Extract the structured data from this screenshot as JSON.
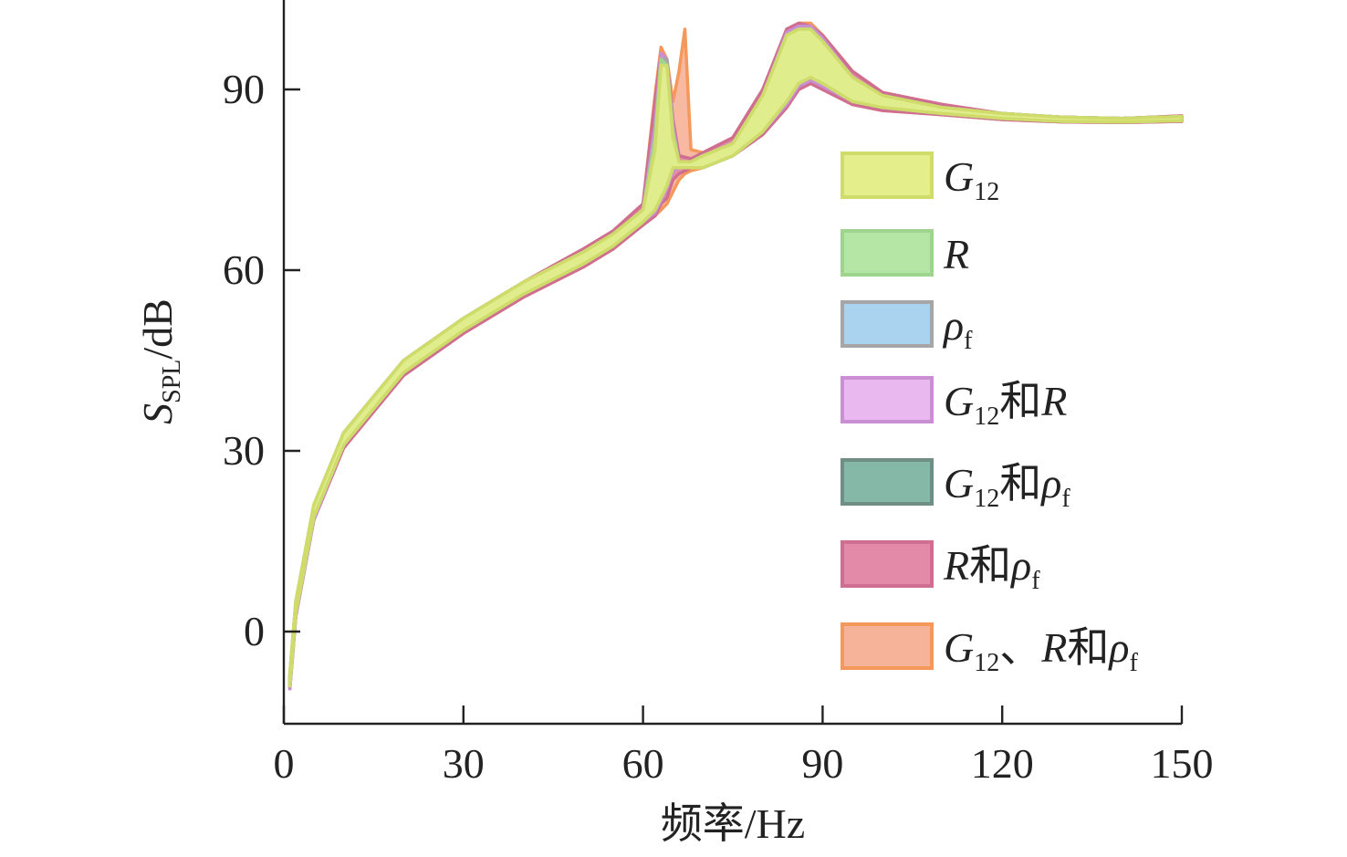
{
  "chart_data": {
    "type": "area",
    "title": "",
    "xlabel": "频率/Hz",
    "ylabel": {
      "main": "S",
      "sub": "SPL",
      "unit": "/dB"
    },
    "xlim": [
      0,
      150
    ],
    "ylim": [
      -15,
      105
    ],
    "xticks": [
      0,
      30,
      60,
      90,
      120,
      150
    ],
    "yticks": [
      0,
      30,
      60,
      90
    ],
    "grid": false,
    "legend_position": "right",
    "series": [
      {
        "name": "G12",
        "label_parts": [
          {
            "t": "G",
            "i": true
          },
          {
            "t": "12",
            "s": true
          }
        ],
        "color": "#e4ee8a",
        "edge": "#cfdc6a",
        "x": [
          1,
          2,
          5,
          10,
          20,
          30,
          40,
          50,
          55,
          60,
          62,
          63,
          64,
          65,
          66,
          68,
          70,
          75,
          80,
          84,
          86,
          88,
          90,
          95,
          100,
          110,
          120,
          130,
          140,
          150
        ],
        "upper": [
          -7,
          5,
          21,
          33,
          45,
          52,
          58,
          63,
          66,
          70,
          80,
          94,
          94,
          82,
          78,
          78,
          79,
          81,
          89,
          99,
          100,
          100,
          98,
          92,
          89,
          87,
          86,
          85.4,
          85.2,
          85.5
        ],
        "lower": [
          -9,
          3,
          19,
          31,
          43,
          50,
          56,
          61,
          64,
          68,
          70,
          72,
          74,
          77,
          77,
          77,
          77,
          79,
          83,
          88,
          91,
          92,
          91,
          88,
          87,
          86,
          85.2,
          84.7,
          84.6,
          84.8
        ]
      },
      {
        "name": "R",
        "label_parts": [
          {
            "t": "R",
            "i": true
          }
        ],
        "color": "#b6e6a6",
        "edge": "#9fd48e",
        "x": [
          1,
          2,
          5,
          10,
          20,
          30,
          40,
          50,
          55,
          60,
          62,
          63,
          64,
          65,
          66,
          68,
          70,
          75,
          80,
          84,
          86,
          88,
          90,
          95,
          100,
          110,
          120,
          130,
          140,
          150
        ],
        "upper": [
          -7,
          5,
          21,
          33,
          45,
          52,
          58,
          63,
          66,
          70,
          82,
          95,
          94,
          83,
          78,
          78,
          79,
          81,
          89,
          99,
          100,
          100,
          98,
          92,
          89,
          87,
          86,
          85.4,
          85.2,
          85.5
        ],
        "lower": [
          -9,
          3,
          19,
          31,
          43,
          50,
          56,
          61,
          64,
          68,
          70,
          72,
          74,
          77,
          77,
          77,
          77,
          79,
          83,
          88,
          91,
          92,
          91,
          88,
          87,
          86,
          85.2,
          84.7,
          84.6,
          84.8
        ]
      },
      {
        "name": "ρf",
        "label_parts": [
          {
            "t": "ρ",
            "i": true
          },
          {
            "t": "f",
            "s": true
          }
        ],
        "color": "#a9d3ee",
        "edge": "#a6a6a6",
        "x": [
          1,
          2,
          5,
          10,
          20,
          30,
          40,
          50,
          55,
          60,
          62,
          63,
          64,
          65,
          66,
          68,
          70,
          75,
          80,
          84,
          86,
          88,
          90,
          95,
          100,
          110,
          120,
          130,
          140,
          150
        ],
        "upper": [
          -7,
          5,
          21,
          33,
          45,
          52,
          58,
          63,
          66,
          70,
          82,
          95,
          95,
          83,
          78,
          78,
          79,
          81,
          89,
          99,
          100,
          100,
          98,
          92,
          89,
          87,
          86,
          85.4,
          85.2,
          85.5
        ],
        "lower": [
          -9,
          3,
          19,
          31,
          43,
          50,
          56,
          61,
          64,
          68,
          70,
          72,
          74,
          77,
          77,
          77,
          77,
          79,
          83,
          88,
          91,
          92,
          91,
          88,
          87,
          86,
          85.2,
          84.7,
          84.6,
          84.8
        ]
      },
      {
        "name": "G12和R",
        "label_parts": [
          {
            "t": "G",
            "i": true
          },
          {
            "t": "12",
            "s": true
          },
          {
            "t": "和"
          },
          {
            "t": "R",
            "i": true
          }
        ],
        "color": "#e8b8ee",
        "edge": "#c98fd2",
        "x": [
          1,
          2,
          5,
          10,
          20,
          30,
          40,
          50,
          55,
          60,
          62,
          63,
          64,
          65,
          66,
          68,
          70,
          75,
          80,
          84,
          86,
          88,
          90,
          95,
          100,
          110,
          120,
          130,
          140,
          150
        ],
        "upper": [
          -7.5,
          4.5,
          20.5,
          33,
          45,
          52,
          58,
          63,
          66,
          70,
          84,
          96,
          95,
          84,
          78,
          78,
          79,
          81,
          89,
          99.5,
          100.5,
          100.5,
          98.5,
          92,
          89,
          87,
          86,
          85.4,
          85.2,
          85.5
        ],
        "lower": [
          -9.5,
          2.5,
          18.5,
          31,
          43,
          50,
          56,
          61,
          64,
          68,
          69.5,
          71.5,
          73.5,
          76.5,
          77,
          77,
          77,
          79,
          83,
          87.5,
          90.5,
          91.5,
          90.5,
          88,
          87,
          86,
          85.2,
          84.7,
          84.6,
          84.8
        ]
      },
      {
        "name": "G12和ρf",
        "label_parts": [
          {
            "t": "G",
            "i": true
          },
          {
            "t": "12",
            "s": true
          },
          {
            "t": "和"
          },
          {
            "t": "ρ",
            "i": true
          },
          {
            "t": "f",
            "s": true
          }
        ],
        "color": "#86b8a8",
        "edge": "#6f8f86",
        "x": [
          1,
          2,
          5,
          10,
          20,
          30,
          40,
          50,
          55,
          60,
          62,
          63,
          64,
          65,
          66,
          68,
          70,
          75,
          80,
          84,
          86,
          88,
          90,
          95,
          100,
          110,
          120,
          130,
          140,
          150
        ],
        "upper": [
          -8,
          4,
          20,
          32.5,
          44.5,
          51.5,
          57.5,
          62.5,
          65.5,
          69.5,
          81,
          94.5,
          94.5,
          82.5,
          78,
          78,
          79,
          81,
          88.5,
          99,
          100,
          100,
          98,
          92,
          89,
          87,
          86,
          85.4,
          85.2,
          85.5
        ],
        "lower": [
          -9,
          3,
          19,
          31,
          43,
          50,
          56,
          61,
          64,
          68,
          70,
          72,
          74,
          77,
          77,
          77,
          77,
          79,
          83,
          88,
          91,
          92,
          91,
          88,
          87,
          86,
          85.2,
          84.7,
          84.6,
          84.8
        ]
      },
      {
        "name": "R和ρf",
        "label_parts": [
          {
            "t": "R",
            "i": true
          },
          {
            "t": "和"
          },
          {
            "t": "ρ",
            "i": true
          },
          {
            "t": "f",
            "s": true
          }
        ],
        "color": "#e28aa8",
        "edge": "#cf6e90",
        "x": [
          1,
          2,
          5,
          10,
          20,
          30,
          40,
          50,
          55,
          60,
          62,
          63,
          64,
          65,
          66,
          68,
          70,
          75,
          80,
          84,
          86,
          88,
          90,
          95,
          100,
          110,
          120,
          130,
          140,
          150
        ],
        "upper": [
          -7.5,
          4.5,
          20.5,
          33,
          45,
          52,
          58,
          63.5,
          66.5,
          71,
          88,
          96,
          95,
          85,
          79,
          78.5,
          79.5,
          82,
          90,
          100,
          101,
          100.5,
          99,
          93,
          89.5,
          87.5,
          86,
          85.4,
          85.2,
          85.6
        ],
        "lower": [
          -9.5,
          2.5,
          18.5,
          30.5,
          42.5,
          49.5,
          55.5,
          60.5,
          63.5,
          67.5,
          69,
          71,
          72,
          75,
          76,
          77,
          77,
          79,
          82.5,
          87,
          90,
          91,
          90,
          87.5,
          86.5,
          85.8,
          85,
          84.6,
          84.5,
          84.7
        ]
      },
      {
        "name": "G12、R和ρf",
        "label_parts": [
          {
            "t": "G",
            "i": true
          },
          {
            "t": "12",
            "s": true
          },
          {
            "t": "、"
          },
          {
            "t": "R",
            "i": true
          },
          {
            "t": "和"
          },
          {
            "t": "ρ",
            "i": true
          },
          {
            "t": "f",
            "s": true
          }
        ],
        "color": "#f7b39a",
        "edge": "#f5985c",
        "x": [
          1,
          2,
          5,
          10,
          20,
          30,
          40,
          50,
          55,
          60,
          62,
          63,
          64,
          65,
          66,
          67,
          68,
          70,
          75,
          80,
          84,
          86,
          88,
          90,
          95,
          100,
          110,
          120,
          130,
          140,
          150
        ],
        "upper": [
          -7.5,
          4.5,
          20.5,
          33,
          45,
          52,
          58,
          63.5,
          66.5,
          71,
          89,
          97,
          95,
          88,
          93,
          100,
          80,
          79.5,
          82,
          90,
          100,
          101,
          101,
          99,
          93,
          89.5,
          87.5,
          86,
          85.4,
          85.2,
          85.6
        ],
        "lower": [
          -9.5,
          2.5,
          18.5,
          30.5,
          42.5,
          49.5,
          55.5,
          60.5,
          63.5,
          67.5,
          69,
          70,
          71,
          73,
          75,
          76,
          76.5,
          77,
          79,
          82.5,
          87,
          90,
          91,
          90,
          87.5,
          86.5,
          85.8,
          85,
          84.6,
          84.5,
          84.7
        ]
      }
    ]
  }
}
